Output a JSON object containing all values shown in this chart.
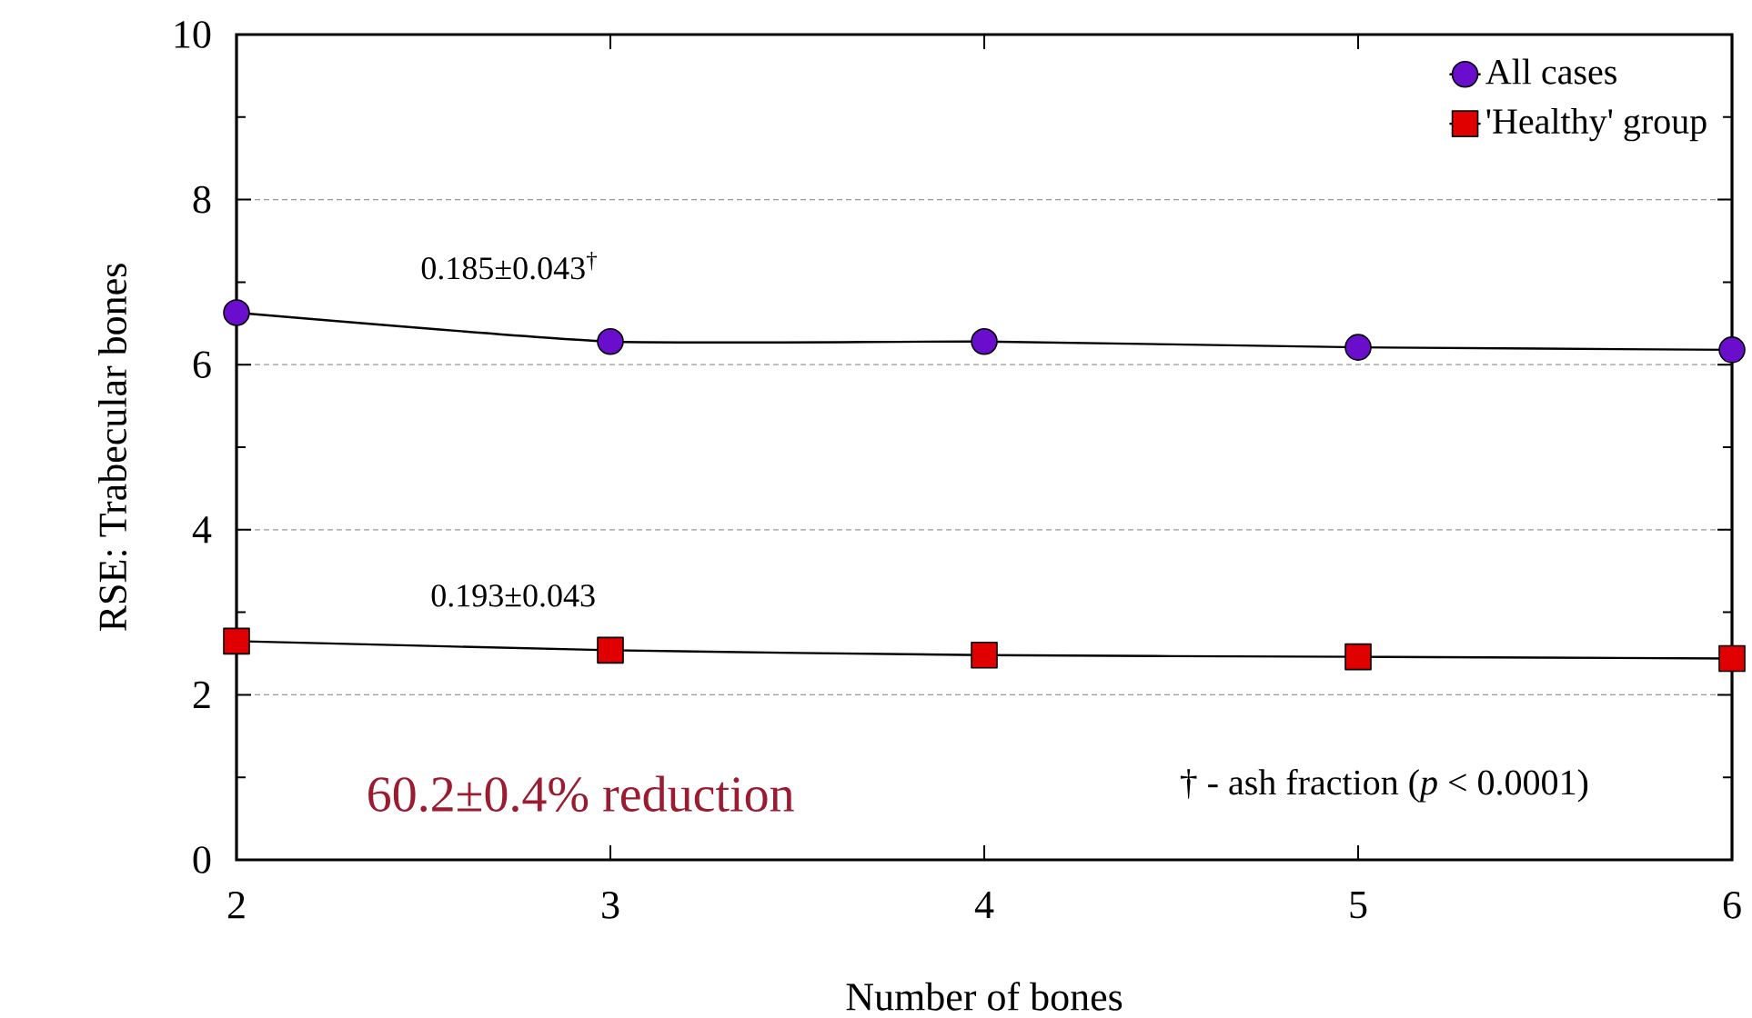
{
  "chart_data": {
    "type": "line",
    "xlabel": "Number of bones",
    "ylabel": "RSE: Trabecular bones",
    "x": [
      2,
      3,
      4,
      5,
      6
    ],
    "series": [
      {
        "name": "All cases",
        "color": "#6a0dcc",
        "marker": "circle",
        "values": [
          6.63,
          6.28,
          6.28,
          6.21,
          6.18
        ]
      },
      {
        "name": "'Healthy' group",
        "color": "#e00000",
        "marker": "square",
        "values": [
          2.65,
          2.54,
          2.48,
          2.46,
          2.44
        ]
      }
    ],
    "xlim": [
      2,
      6
    ],
    "xticks": [
      2,
      3,
      4,
      5,
      6
    ],
    "ylim": [
      0,
      10
    ],
    "yticks": [
      0,
      2,
      4,
      6,
      8,
      10
    ],
    "grid": "y",
    "legend": "top right",
    "line_style": "solid",
    "annotations": [
      "0.185±0.043$^{†}$",
      "0.193±0.043",
      "60.2±0.4% reduction",
      "† - ash fraction (*p* < 0.0001)"
    ]
  }
}
